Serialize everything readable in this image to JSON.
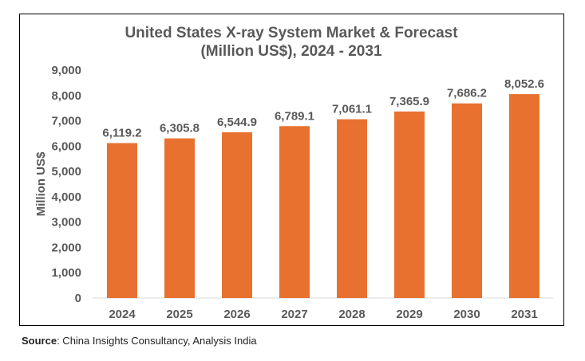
{
  "chart_data": {
    "type": "bar",
    "title": [
      "United States X-ray System Market & Forecast",
      "(Million US$), 2024 - 2031"
    ],
    "xlabel": "",
    "ylabel": "Million US$",
    "categories": [
      "2024",
      "2025",
      "2026",
      "2027",
      "2028",
      "2029",
      "2030",
      "2031"
    ],
    "values": [
      6119.2,
      6305.8,
      6544.9,
      6789.1,
      7061.1,
      7365.9,
      7686.2,
      8052.6
    ],
    "data_labels": [
      "6,119.2",
      "6,305.8",
      "6,544.9",
      "6,789.1",
      "7,061.1",
      "7,365.9",
      "7,686.2",
      "8,052.6"
    ],
    "ylim": [
      0,
      9000
    ],
    "yticks": [
      "0",
      "1,000",
      "2,000",
      "3,000",
      "4,000",
      "5,000",
      "6,000",
      "7,000",
      "8,000",
      "9,000"
    ],
    "grid": false,
    "legend": "none",
    "bar_color": "#E87130",
    "text_color": "#595959"
  },
  "source": {
    "label": "Source",
    "text": ": China Insights Consultancy, Analysis India"
  }
}
